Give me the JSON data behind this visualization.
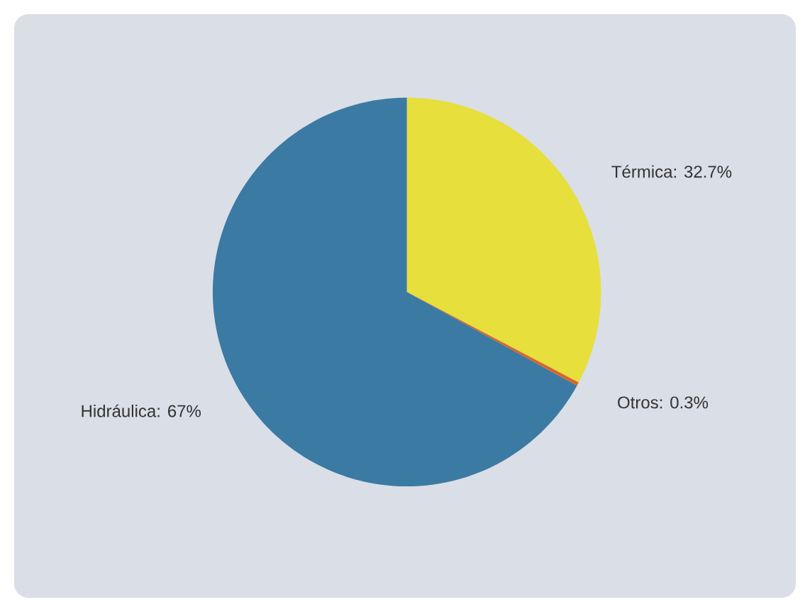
{
  "chart_data": {
    "type": "pie",
    "categories": [
      "Térmica",
      "Otros",
      "Hidráulica"
    ],
    "values": [
      32.7,
      0.3,
      67
    ],
    "value_labels": [
      ": 32.7%",
      ": 0.3%",
      ": 67%"
    ],
    "colors": [
      "#e6df3c",
      "#d9652a",
      "#3b7aa3"
    ]
  }
}
